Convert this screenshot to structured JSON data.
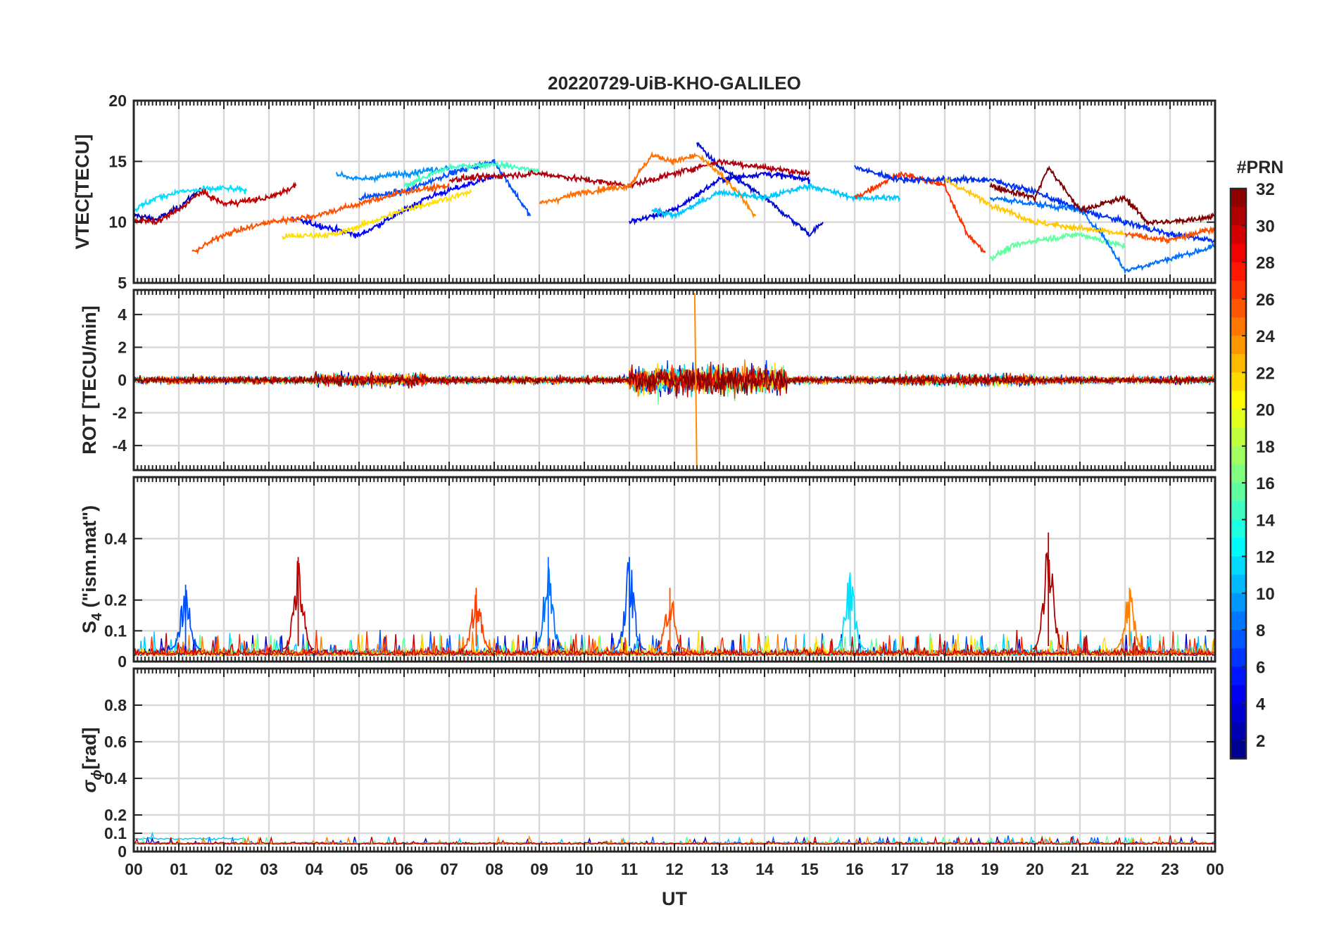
{
  "chart_data": {
    "type": "line",
    "title": "20220729-UiB-KHO-GALILEO",
    "xlabel": "UT",
    "xlim": [
      0,
      24
    ],
    "x_tick_labels": [
      "00",
      "01",
      "02",
      "03",
      "04",
      "05",
      "06",
      "07",
      "08",
      "09",
      "10",
      "11",
      "12",
      "13",
      "14",
      "15",
      "16",
      "17",
      "18",
      "19",
      "20",
      "21",
      "22",
      "23",
      "00"
    ],
    "colorbar": {
      "title": "#PRN",
      "range": [
        1,
        32
      ],
      "ticks": [
        2,
        4,
        6,
        8,
        10,
        12,
        14,
        16,
        18,
        20,
        22,
        24,
        26,
        28,
        30,
        32
      ],
      "colormap": "jet"
    },
    "panels": [
      {
        "ylabel": "VTEC[TECU]",
        "ylim": [
          5,
          20
        ],
        "yticks": [
          5,
          10,
          15,
          20
        ],
        "series": [
          {
            "prn": 2,
            "color": "#0000B0",
            "x": [
              0,
              0.5,
              1,
              1.5
            ],
            "y": [
              10.6,
              10.2,
              11.2,
              12.8
            ]
          },
          {
            "prn": 3,
            "color": "#0000FF",
            "x": [
              3.5,
              5,
              6.5,
              8
            ],
            "y": [
              10.3,
              8.9,
              12.0,
              13.8
            ]
          },
          {
            "prn": 5,
            "color": "#0010D0",
            "x": [
              12.5,
              13,
              14,
              15,
              15.3
            ],
            "y": [
              16.5,
              14.5,
              12.0,
              9.0,
              10.0
            ]
          },
          {
            "prn": 7,
            "color": "#0050FF",
            "x": [
              5,
              6,
              7,
              8,
              8.8
            ],
            "y": [
              12.0,
              12.5,
              14.0,
              15.0,
              10.5
            ]
          },
          {
            "prn": 4,
            "color": "#0000E0",
            "x": [
              11,
              12,
              13,
              14,
              15
            ],
            "y": [
              10.0,
              11.0,
              13.5,
              14.0,
              13.5
            ]
          },
          {
            "prn": 10,
            "color": "#0090FF",
            "x": [
              4.5,
              5,
              6,
              7
            ],
            "y": [
              14.0,
              13.5,
              14.0,
              14.5
            ]
          },
          {
            "prn": 12,
            "color": "#00E0FF",
            "x": [
              0,
              0.5,
              1,
              2,
              2.5
            ],
            "y": [
              11.0,
              12.0,
              12.5,
              12.8,
              12.6
            ]
          },
          {
            "prn": 13,
            "color": "#40FFC0",
            "x": [
              6,
              7,
              8,
              9
            ],
            "y": [
              13.0,
              14.5,
              14.8,
              14.2
            ]
          },
          {
            "prn": 20,
            "color": "#FFE000",
            "x": [
              3.3,
              4.5,
              6,
              7.5
            ],
            "y": [
              8.8,
              9.0,
              11.0,
              12.5
            ]
          },
          {
            "prn": 25,
            "color": "#FF5000",
            "x": [
              1.3,
              2,
              3,
              4,
              5,
              6,
              7
            ],
            "y": [
              7.5,
              9.0,
              10.0,
              10.5,
              11.5,
              12.5,
              13.0
            ]
          },
          {
            "prn": 31,
            "color": "#C00000",
            "x": [
              0,
              0.5,
              1,
              1.5,
              2,
              3,
              3.6
            ],
            "y": [
              10.2,
              10.0,
              11.0,
              12.5,
              11.5,
              12.0,
              13.0
            ]
          },
          {
            "prn": 30,
            "color": "#B00010",
            "x": [
              7,
              8,
              9,
              10,
              11,
              12,
              13,
              14,
              15
            ],
            "y": [
              13.5,
              13.8,
              14.0,
              13.5,
              13.0,
              14.0,
              15.0,
              14.5,
              14.0
            ]
          },
          {
            "prn": 24,
            "color": "#FF7000",
            "x": [
              9,
              10,
              11,
              11.5,
              12,
              12.5
            ],
            "y": [
              11.5,
              12.5,
              13.0,
              15.5,
              15.0,
              15.5
            ]
          },
          {
            "prn": 23,
            "color": "#FF8C00",
            "x": [
              12.5,
              13,
              13.5,
              13.8
            ],
            "y": [
              15.5,
              14.0,
              12.0,
              10.5
            ]
          },
          {
            "prn": 11,
            "color": "#00C8FF",
            "x": [
              11.5,
              12,
              13,
              14,
              15,
              16,
              17
            ],
            "y": [
              11.0,
              10.5,
              12.5,
              12.0,
              13.0,
              12.0,
              12.0
            ]
          },
          {
            "prn": 27,
            "color": "#FF3000",
            "x": [
              16,
              17,
              18,
              18.5,
              18.9
            ],
            "y": [
              12.0,
              14.0,
              13.0,
              9.0,
              7.5
            ]
          },
          {
            "prn": 6,
            "color": "#0030F0",
            "x": [
              16,
              17,
              18,
              19,
              20,
              21,
              22,
              23,
              24
            ],
            "y": [
              14.5,
              13.5,
              13.5,
              13.5,
              12.5,
              11.0,
              10.0,
              9.0,
              8.5
            ]
          },
          {
            "prn": 15,
            "color": "#60FFA0",
            "x": [
              19,
              19.5,
              20,
              21,
              22
            ],
            "y": [
              7.0,
              8.0,
              8.5,
              9.0,
              8.0
            ]
          },
          {
            "prn": 9,
            "color": "#0070FF",
            "x": [
              19,
              20,
              21,
              21.5,
              22,
              23,
              24
            ],
            "y": [
              12.0,
              11.5,
              11.0,
              9.0,
              6.0,
              7.0,
              8.0
            ]
          },
          {
            "prn": 21,
            "color": "#FFC800",
            "x": [
              18,
              19,
              20,
              21,
              22
            ],
            "y": [
              13.5,
              11.5,
              10.0,
              9.5,
              9.0
            ]
          },
          {
            "prn": 26,
            "color": "#FF5000",
            "x": [
              22,
              23,
              24
            ],
            "y": [
              9.0,
              8.5,
              9.5
            ]
          },
          {
            "prn": 32,
            "color": "#800000",
            "x": [
              19,
              20,
              20.3,
              21,
              22,
              22.5,
              23,
              24
            ],
            "y": [
              13.0,
              12.0,
              14.5,
              11.0,
              12.0,
              10.0,
              10.0,
              10.5
            ]
          }
        ]
      },
      {
        "ylabel": "ROT [TECU/min]",
        "ylim": [
          -5.5,
          5.5
        ],
        "yticks": [
          -4,
          -2,
          0,
          2,
          4
        ],
        "note_values": {
          "min": -5.4,
          "max": 5.3,
          "peak_time_ut": 12.45
        }
      },
      {
        "ylabel": "S4 (\"ism.mat\")",
        "ylabel_main": "S",
        "ylabel_sub": "4",
        "ylabel_rest": " (\"ism.mat\")",
        "ylim": [
          0,
          0.6
        ],
        "yticks": [
          0,
          0.1,
          0.2,
          0.4
        ],
        "peaks": [
          {
            "x": 1.15,
            "y": 0.25,
            "color": "#0050FF"
          },
          {
            "x": 3.65,
            "y": 0.34,
            "color": "#C00000"
          },
          {
            "x": 7.6,
            "y": 0.24,
            "color": "#FF4000"
          },
          {
            "x": 9.2,
            "y": 0.34,
            "color": "#0070FF"
          },
          {
            "x": 11.0,
            "y": 0.34,
            "color": "#0050FF"
          },
          {
            "x": 11.9,
            "y": 0.24,
            "color": "#FF5000"
          },
          {
            "x": 15.9,
            "y": 0.29,
            "color": "#00E0FF"
          },
          {
            "x": 20.3,
            "y": 0.42,
            "color": "#B00000"
          },
          {
            "x": 22.1,
            "y": 0.24,
            "color": "#FF8000"
          }
        ]
      },
      {
        "ylabel_main": "σ",
        "ylabel_sub": "ϕ",
        "ylabel_rest": "[rad]",
        "ylim": [
          0,
          1
        ],
        "yticks": [
          0,
          0.1,
          0.2,
          0.4,
          0.6,
          0.8
        ],
        "baseline": 0.04
      }
    ]
  }
}
